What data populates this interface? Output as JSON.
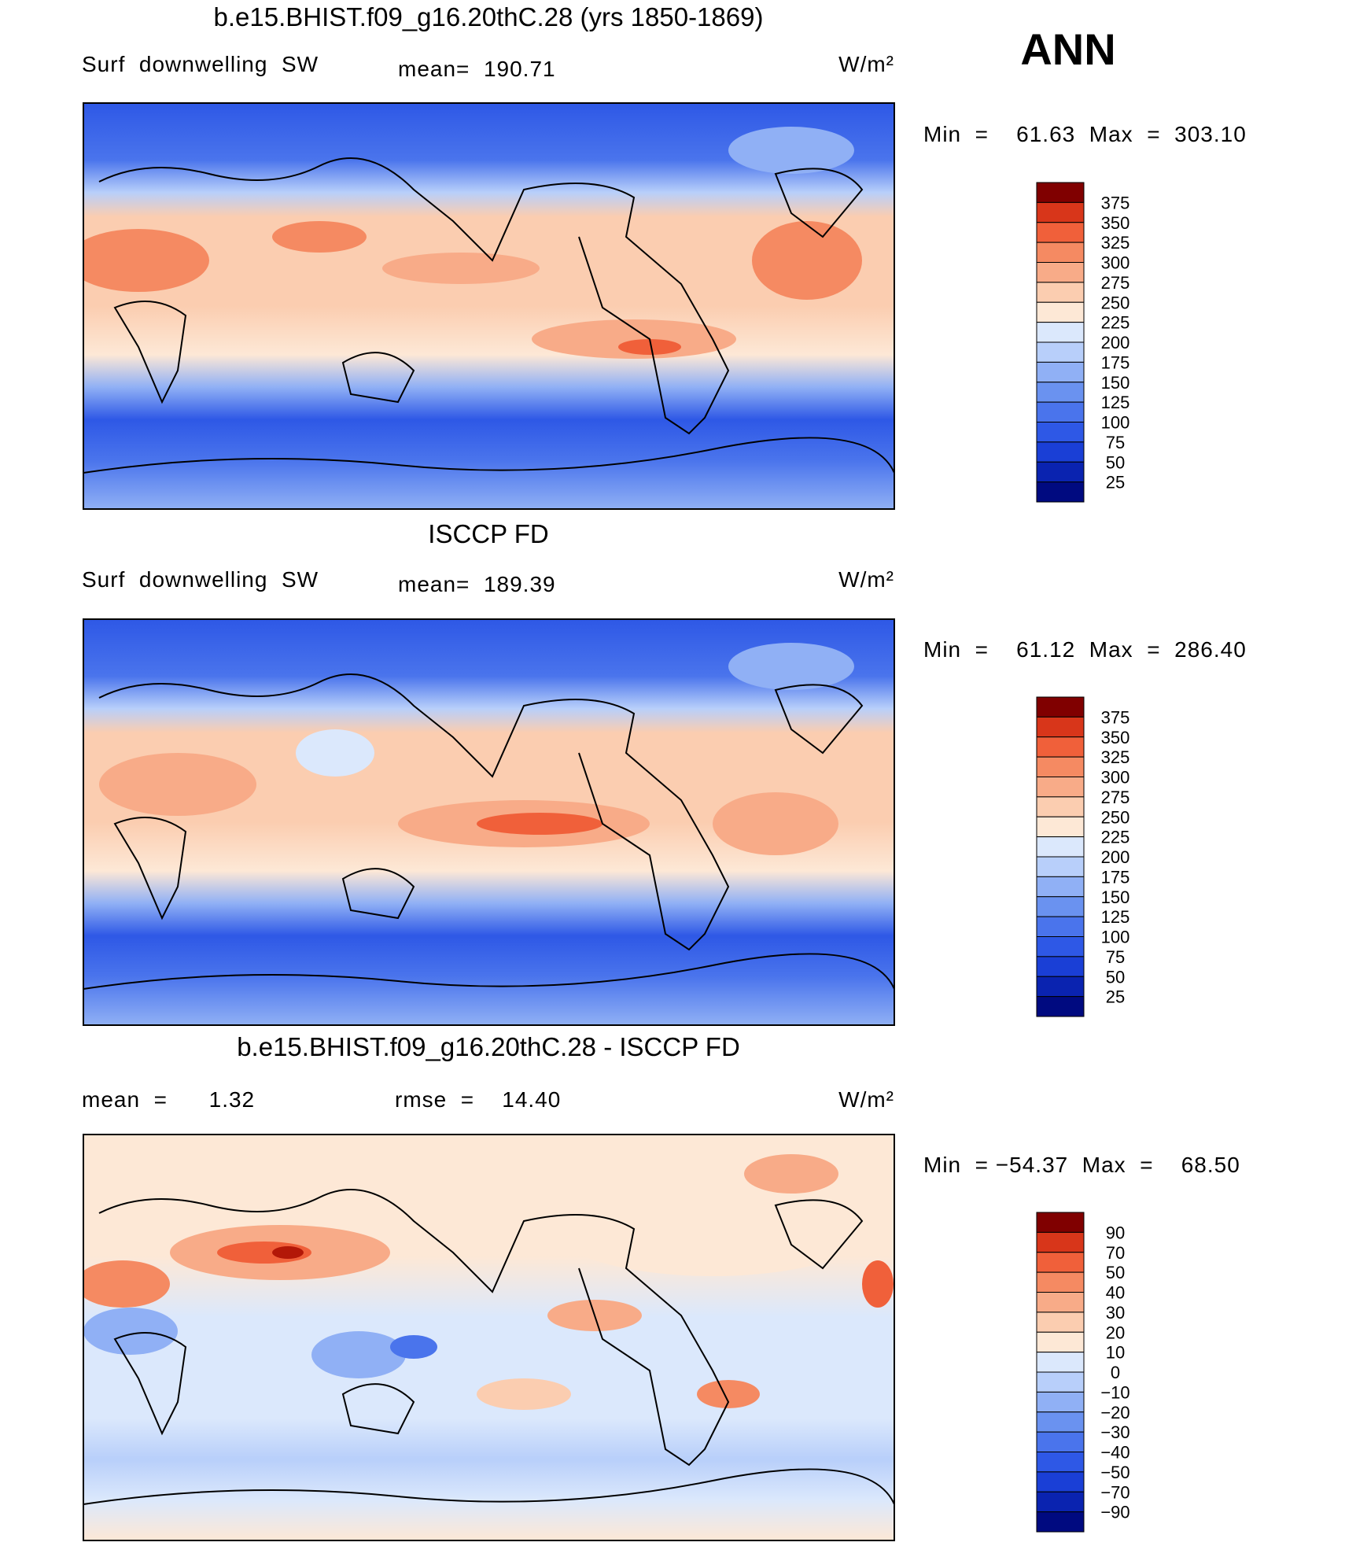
{
  "season": "ANN",
  "palette": [
    "#000a80",
    "#0a23b0",
    "#1a3fd6",
    "#2e58e6",
    "#4a74ec",
    "#6a92f0",
    "#90b0f5",
    "#b8cffa",
    "#dbe8fc",
    "#fde8d6",
    "#fbcdb0",
    "#f8ab88",
    "#f58a62",
    "#f0603a",
    "#d8361a",
    "#b31808",
    "#800000"
  ],
  "panels": [
    {
      "title": "b.e15.BHIST.f09_g16.20thC.28 (yrs 1850-1869)",
      "left_label": "Surf  downwelling  SW",
      "center_label": "mean=  190.71",
      "units": "W/m²",
      "range": "Min  =    61.63  Max  =  303.10",
      "levels": [
        "375",
        "350",
        "325",
        "300",
        "275",
        "250",
        "225",
        "200",
        "175",
        "150",
        "125",
        "100",
        "75",
        "50",
        "25"
      ]
    },
    {
      "title": "ISCCP FD",
      "left_label": "Surf  downwelling  SW",
      "center_label": "mean=  189.39",
      "units": "W/m²",
      "range": "Min  =    61.12  Max  =  286.40",
      "levels": [
        "375",
        "350",
        "325",
        "300",
        "275",
        "250",
        "225",
        "200",
        "175",
        "150",
        "125",
        "100",
        "75",
        "50",
        "25"
      ]
    },
    {
      "title": "b.e15.BHIST.f09_g16.20thC.28 - ISCCP FD",
      "left_label": "mean  =      1.32",
      "center_label": "rmse  =    14.40",
      "units": "W/m²",
      "range": "Min  = −54.37  Max  =    68.50",
      "levels": [
        "90",
        "70",
        "50",
        "40",
        "30",
        "20",
        "10",
        "0",
        "−10",
        "−20",
        "−30",
        "−40",
        "−50",
        "−70",
        "−90"
      ]
    }
  ]
}
